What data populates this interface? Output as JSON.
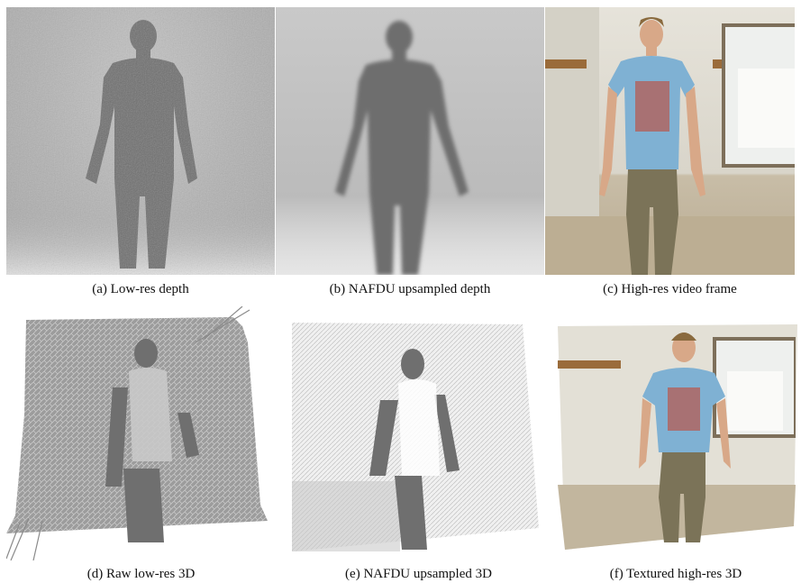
{
  "figure": {
    "panels": [
      {
        "id": "a",
        "caption": "(a)  Low-res depth"
      },
      {
        "id": "b",
        "caption": "(b)  NAFDU upsampled depth"
      },
      {
        "id": "c",
        "caption": "(c)  High-res video frame"
      },
      {
        "id": "d",
        "caption": "(d)  Raw low-res 3D"
      },
      {
        "id": "e",
        "caption": "(e)  NAFDU upsampled 3D"
      },
      {
        "id": "f",
        "caption": "(f)  Textured high-res 3D"
      }
    ],
    "colors": {
      "depth_bg": "#b5b5b5",
      "depth_person": "#6e6e6e",
      "wall": "#e3e0d6",
      "shirt": "#7fb1d3",
      "pants": "#7b7358",
      "board": "#f4f5f2",
      "wood": "#9a6b3a"
    }
  }
}
